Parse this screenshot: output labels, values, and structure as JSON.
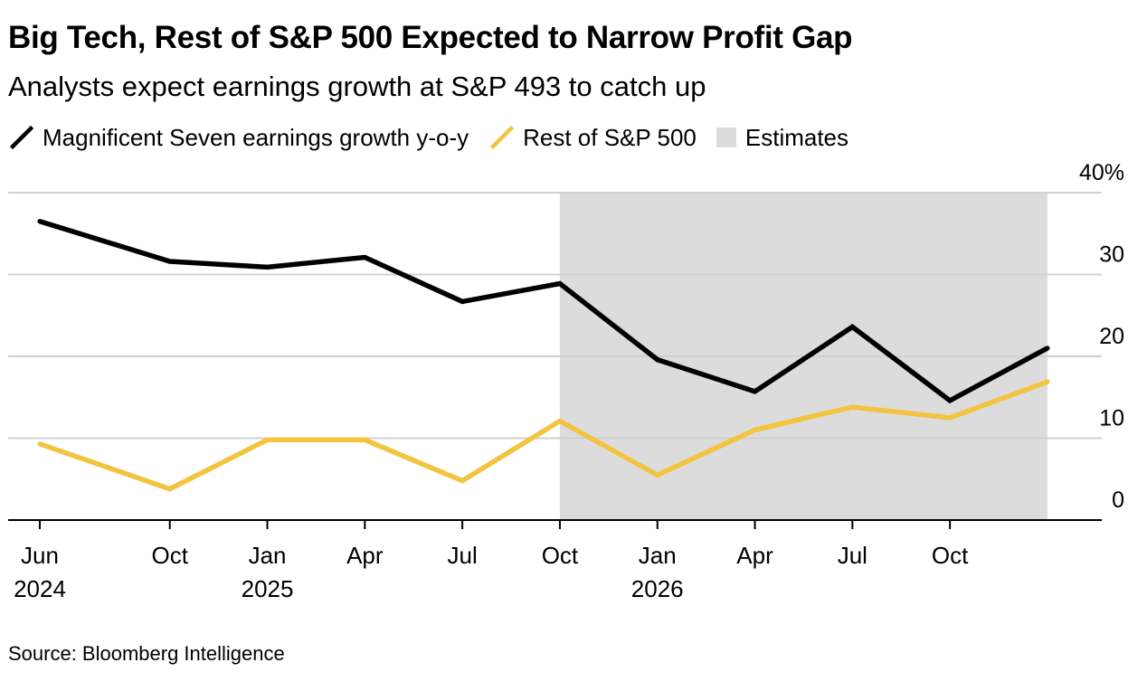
{
  "chart_data": {
    "type": "line",
    "title": "Big Tech, Rest of S&P 500 Expected to Narrow Profit Gap",
    "subtitle": "Analysts expect earnings growth at S&P 493 to catch up",
    "x": [
      "2024-06",
      "2024-10",
      "2025-01",
      "2025-04",
      "2025-07",
      "2025-10",
      "2026-01",
      "2026-04",
      "2026-07",
      "2026-10",
      "2027-01"
    ],
    "series": [
      {
        "name": "Magnificent Seven earnings growth y-o-y",
        "color": "#000000",
        "values": [
          36.5,
          31.6,
          30.9,
          32.1,
          26.7,
          28.9,
          19.6,
          15.7,
          23.6,
          14.6,
          21.0
        ]
      },
      {
        "name": "Rest of S&P 500",
        "color": "#f3c43f",
        "values": [
          9.3,
          3.8,
          9.8,
          9.8,
          4.8,
          12.1,
          5.5,
          11.0,
          13.8,
          12.5,
          16.9
        ]
      }
    ],
    "shaded_region": {
      "label": "Estimates",
      "color": "#dcdcdc",
      "from": "2025-10",
      "to": "2027-01"
    },
    "ylim": [
      0,
      40
    ],
    "yticks": [
      {
        "value": 40,
        "label": "40%"
      },
      {
        "value": 30,
        "label": "30"
      },
      {
        "value": 20,
        "label": "20"
      },
      {
        "value": 10,
        "label": "10"
      },
      {
        "value": 0,
        "label": "0"
      }
    ],
    "xticks": [
      {
        "at": "2024-06",
        "label": "Jun",
        "year": "2024"
      },
      {
        "at": "2024-10",
        "label": "Oct",
        "year": ""
      },
      {
        "at": "2025-01",
        "label": "Jan",
        "year": "2025"
      },
      {
        "at": "2025-04",
        "label": "Apr",
        "year": ""
      },
      {
        "at": "2025-07",
        "label": "Jul",
        "year": ""
      },
      {
        "at": "2025-10",
        "label": "Oct",
        "year": ""
      },
      {
        "at": "2026-01",
        "label": "Jan",
        "year": "2026"
      },
      {
        "at": "2026-04",
        "label": "Apr",
        "year": ""
      },
      {
        "at": "2026-07",
        "label": "Jul",
        "year": ""
      },
      {
        "at": "2026-10",
        "label": "Oct",
        "year": ""
      }
    ],
    "xlabel": "",
    "ylabel": "",
    "grid": true,
    "legend_position": "top-left"
  },
  "legend": {
    "mag7_label": "Magnificent Seven earnings growth y-o-y",
    "rest_label": "Rest of S&P 500",
    "estimates_label": "Estimates"
  },
  "source": "Source: Bloomberg Intelligence"
}
